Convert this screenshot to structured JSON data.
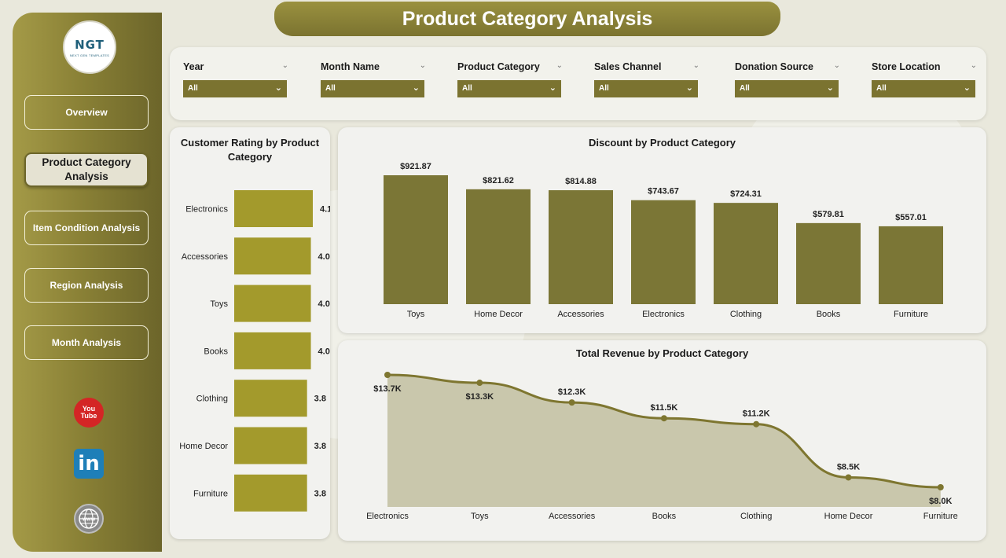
{
  "page": {
    "title": "Product Category Analysis"
  },
  "logo": {
    "text": "NGT",
    "subtext": "NEXT GEN TEMPLATES"
  },
  "nav": [
    {
      "label": "Overview",
      "active": false
    },
    {
      "label": "Product Category Analysis",
      "active": true
    },
    {
      "label": "Item Condition Analysis",
      "active": false
    },
    {
      "label": "Region Analysis",
      "active": false
    },
    {
      "label": "Month Analysis",
      "active": false
    }
  ],
  "social": {
    "youtube_top": "You",
    "youtube_bottom": "Tube",
    "linkedin": "in",
    "web": "www"
  },
  "filters": [
    {
      "label": "Year",
      "value": "All"
    },
    {
      "label": "Month Name",
      "value": "All"
    },
    {
      "label": "Product Category",
      "value": "All"
    },
    {
      "label": "Sales Channel",
      "value": "All"
    },
    {
      "label": "Donation Source",
      "value": "All"
    },
    {
      "label": "Store Location",
      "value": "All"
    }
  ],
  "chart_data": [
    {
      "type": "bar",
      "orientation": "horizontal",
      "title": "Customer Rating by Product Category",
      "categories": [
        "Electronics",
        "Accessories",
        "Toys",
        "Books",
        "Clothing",
        "Home Decor",
        "Furniture"
      ],
      "values": [
        4.1,
        4.0,
        4.0,
        4.0,
        3.8,
        3.8,
        3.8
      ],
      "labels": [
        "4.1",
        "4.0",
        "4.0",
        "4.0",
        "3.8",
        "3.8",
        "3.8"
      ],
      "color": "#a39a2c"
    },
    {
      "type": "bar",
      "title": "Discount by Product Category",
      "categories": [
        "Toys",
        "Home Decor",
        "Accessories",
        "Electronics",
        "Clothing",
        "Books",
        "Furniture"
      ],
      "values": [
        921.87,
        821.62,
        814.88,
        743.67,
        724.31,
        579.81,
        557.01
      ],
      "labels": [
        "$921.87",
        "$821.62",
        "$814.88",
        "$743.67",
        "$724.31",
        "$579.81",
        "$557.01"
      ],
      "color": "#7b7636"
    },
    {
      "type": "area",
      "title": "Total Revenue by Product Category",
      "categories": [
        "Electronics",
        "Toys",
        "Accessories",
        "Books",
        "Clothing",
        "Home Decor",
        "Furniture"
      ],
      "values": [
        13700,
        13300,
        12300,
        11500,
        11200,
        8500,
        8000
      ],
      "labels": [
        "$13.7K",
        "$13.3K",
        "$12.3K",
        "$11.5K",
        "$11.2K",
        "$8.5K",
        "$8.0K"
      ],
      "line_color": "#7e7630",
      "fill_color": "#c6c4a8"
    }
  ]
}
